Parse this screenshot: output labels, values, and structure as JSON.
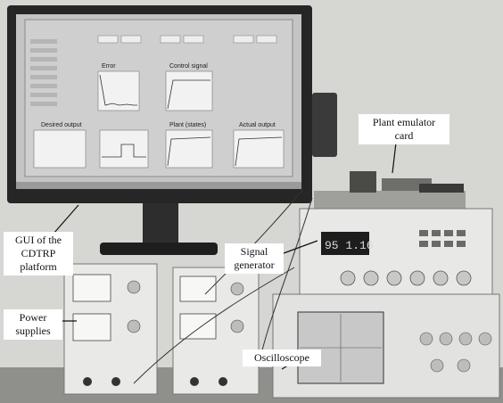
{
  "callouts": {
    "plant_emulator": [
      "Plant emulator",
      "card"
    ],
    "gui": [
      "GUI of the",
      "CDTRP",
      "platform"
    ],
    "signal_generator": [
      "Signal",
      "generator"
    ],
    "power_supplies": [
      "Power",
      "supplies"
    ],
    "oscilloscope": "Oscilloscope"
  },
  "screen_panels": {
    "error": "Error",
    "control_signal": "Control signal",
    "desired_output": "Desired output",
    "plant_states": "Plant (states)",
    "actual_output": "Actual output"
  },
  "signal_generator_display": "95 1.16",
  "colors": {
    "wall": "#d8d8d6",
    "monitor_bezel": "#2a2a2a",
    "screen_bg": "#c9c9c9",
    "plot_bg": "#f4f4f4",
    "instrument_body": "#e6e6e4",
    "display_red": "#d8d8d8",
    "callout_bg": "#ffffff"
  }
}
